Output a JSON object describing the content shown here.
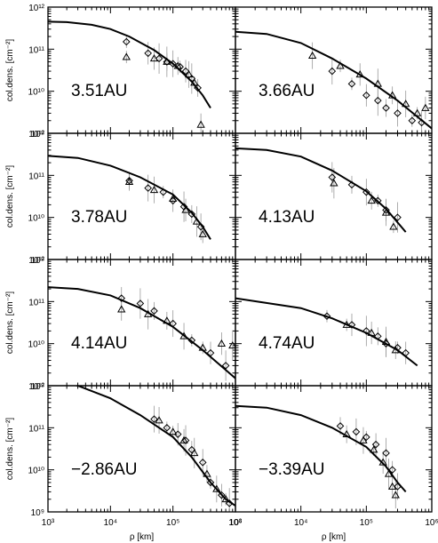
{
  "chart_data": {
    "type": "scatter",
    "xscale": "log",
    "yscale": "log",
    "xlim": [
      1000,
      1000000
    ],
    "ylim": [
      1000000000,
      1000000000000
    ],
    "xlabel": "ρ [km]",
    "ylabel": "col.dens. [cm⁻²]",
    "x_tick_labels": [
      "10³",
      "10⁴",
      "10⁵",
      "10⁶"
    ],
    "y_tick_labels": [
      "10⁹",
      "10¹⁰",
      "10¹¹",
      "10¹²"
    ],
    "markers": {
      "diamond": "open diamond",
      "triangle": "open triangle"
    },
    "grid": false,
    "panels": [
      {
        "label": "3.51AU",
        "model": [
          [
            1000,
            450000000000.0
          ],
          [
            2000,
            440000000000.0
          ],
          [
            5000,
            380000000000.0
          ],
          [
            10000,
            300000000000.0
          ],
          [
            20000,
            200000000000.0
          ],
          [
            50000,
            95000000000.0
          ],
          [
            100000,
            45000000000.0
          ],
          [
            200000,
            17000000000.0
          ],
          [
            300000,
            8000000000.0
          ],
          [
            400000,
            4000000000.0
          ]
        ],
        "diamonds": [
          [
            18000,
            150000000000.0
          ],
          [
            40000,
            80000000000.0
          ],
          [
            60000,
            60000000000.0
          ],
          [
            80000,
            50000000000.0
          ],
          [
            100000,
            45000000000.0
          ],
          [
            130000,
            38000000000.0
          ],
          [
            160000,
            30000000000.0
          ],
          [
            200000,
            20000000000.0
          ],
          [
            250000,
            12000000000.0
          ]
        ],
        "triangles": [
          [
            18000,
            65000000000.0
          ],
          [
            50000,
            60000000000.0
          ],
          [
            80000,
            50000000000.0
          ],
          [
            120000,
            40000000000.0
          ],
          [
            180000,
            25000000000.0
          ],
          [
            220000,
            16000000000.0
          ],
          [
            280000,
            1600000000.0
          ]
        ]
      },
      {
        "label": "3.66AU",
        "model": [
          [
            1000,
            260000000000.0
          ],
          [
            3000,
            230000000000.0
          ],
          [
            10000,
            140000000000.0
          ],
          [
            30000,
            60000000000.0
          ],
          [
            100000,
            20000000000.0
          ],
          [
            300000,
            6000000000.0
          ],
          [
            1000000,
            1300000000.0
          ]
        ],
        "diamonds": [
          [
            30000,
            30000000000.0
          ],
          [
            60000,
            15000000000.0
          ],
          [
            100000,
            8000000000.0
          ],
          [
            150000,
            6000000000.0
          ],
          [
            200000,
            4000000000.0
          ],
          [
            300000,
            3000000000.0
          ],
          [
            500000,
            2000000000.0
          ],
          [
            700000,
            1800000000.0
          ]
        ],
        "triangles": [
          [
            15000,
            70000000000.0
          ],
          [
            40000,
            40000000000.0
          ],
          [
            80000,
            25000000000.0
          ],
          [
            150000,
            15000000000.0
          ],
          [
            250000,
            8000000000.0
          ],
          [
            400000,
            5000000000.0
          ],
          [
            600000,
            3000000000.0
          ],
          [
            800000,
            4000000000.0
          ]
        ]
      },
      {
        "label": "3.78AU",
        "model": [
          [
            1000,
            290000000000.0
          ],
          [
            3000,
            260000000000.0
          ],
          [
            10000,
            170000000000.0
          ],
          [
            30000,
            90000000000.0
          ],
          [
            100000,
            35000000000.0
          ],
          [
            200000,
            13000000000.0
          ],
          [
            300000,
            6000000000.0
          ],
          [
            400000,
            3000000000.0
          ]
        ],
        "diamonds": [
          [
            20000,
            75000000000.0
          ],
          [
            40000,
            50000000000.0
          ],
          [
            70000,
            40000000000.0
          ],
          [
            100000,
            25000000000.0
          ],
          [
            150000,
            18000000000.0
          ],
          [
            200000,
            12000000000.0
          ],
          [
            280000,
            6000000000.0
          ]
        ],
        "triangles": [
          [
            20000,
            70000000000.0
          ],
          [
            50000,
            45000000000.0
          ],
          [
            100000,
            28000000000.0
          ],
          [
            160000,
            15000000000.0
          ],
          [
            240000,
            8000000000.0
          ],
          [
            300000,
            4000000000.0
          ]
        ]
      },
      {
        "label": "4.13AU",
        "model": [
          [
            1000,
            440000000000.0
          ],
          [
            3000,
            400000000000.0
          ],
          [
            10000,
            280000000000.0
          ],
          [
            30000,
            130000000000.0
          ],
          [
            100000,
            42000000000.0
          ],
          [
            200000,
            16000000000.0
          ],
          [
            400000,
            4500000000.0
          ]
        ],
        "diamonds": [
          [
            30000,
            90000000000.0
          ],
          [
            60000,
            60000000000.0
          ],
          [
            100000,
            40000000000.0
          ],
          [
            150000,
            25000000000.0
          ],
          [
            200000,
            15000000000.0
          ],
          [
            300000,
            10000000000.0
          ]
        ],
        "triangles": [
          [
            32000,
            65000000000.0
          ],
          [
            120000,
            25000000000.0
          ],
          [
            200000,
            13000000000.0
          ],
          [
            260000,
            6000000000.0
          ]
        ]
      },
      {
        "label": "4.14AU",
        "model": [
          [
            1000,
            220000000000.0
          ],
          [
            3000,
            200000000000.0
          ],
          [
            10000,
            140000000000.0
          ],
          [
            30000,
            70000000000.0
          ],
          [
            100000,
            25000000000.0
          ],
          [
            300000,
            7000000000.0
          ],
          [
            1000000,
            1500000000.0
          ]
        ],
        "diamonds": [
          [
            15000,
            120000000000.0
          ],
          [
            30000,
            90000000000.0
          ],
          [
            50000,
            60000000000.0
          ],
          [
            100000,
            30000000000.0
          ],
          [
            200000,
            12000000000.0
          ],
          [
            400000,
            6000000000.0
          ],
          [
            700000,
            3000000000.0
          ]
        ],
        "triangles": [
          [
            15000,
            65000000000.0
          ],
          [
            40000,
            50000000000.0
          ],
          [
            80000,
            35000000000.0
          ],
          [
            150000,
            15000000000.0
          ],
          [
            300000,
            8000000000.0
          ],
          [
            600000,
            10000000000.0
          ],
          [
            900000,
            9000000000.0
          ]
        ]
      },
      {
        "label": "4.74AU",
        "model": [
          [
            1000,
            120000000000.0
          ],
          [
            10000,
            70000000000.0
          ],
          [
            30000,
            40000000000.0
          ],
          [
            100000,
            18000000000.0
          ],
          [
            300000,
            7000000000.0
          ],
          [
            600000,
            3000000000.0
          ]
        ],
        "diamonds": [
          [
            25000,
            45000000000.0
          ],
          [
            60000,
            28000000000.0
          ],
          [
            100000,
            20000000000.0
          ],
          [
            150000,
            15000000000.0
          ],
          [
            200000,
            10000000000.0
          ],
          [
            300000,
            8000000000.0
          ],
          [
            400000,
            6000000000.0
          ]
        ],
        "triangles": [
          [
            50000,
            28000000000.0
          ],
          [
            120000,
            18000000000.0
          ],
          [
            200000,
            11000000000.0
          ],
          [
            280000,
            7000000000.0
          ]
        ]
      },
      {
        "label": "−2.86AU",
        "model": [
          [
            1000,
            1400000000000.0
          ],
          [
            3000,
            1000000000000.0
          ],
          [
            10000,
            500000000000.0
          ],
          [
            30000,
            200000000000.0
          ],
          [
            100000,
            60000000000.0
          ],
          [
            200000,
            20000000000.0
          ],
          [
            400000,
            5000000000.0
          ],
          [
            700000,
            2000000000.0
          ],
          [
            1000000,
            1400000000.0
          ]
        ],
        "diamonds": [
          [
            50000,
            160000000000.0
          ],
          [
            80000,
            100000000000.0
          ],
          [
            120000,
            70000000000.0
          ],
          [
            160000,
            50000000000.0
          ],
          [
            200000,
            30000000000.0
          ],
          [
            300000,
            15000000000.0
          ],
          [
            400000,
            5000000000.0
          ],
          [
            600000,
            2500000000.0
          ],
          [
            800000,
            1600000000.0
          ]
        ],
        "triangles": [
          [
            60000,
            150000000000.0
          ],
          [
            100000,
            80000000000.0
          ],
          [
            150000,
            50000000000.0
          ],
          [
            220000,
            25000000000.0
          ],
          [
            350000,
            8000000000.0
          ],
          [
            500000,
            3500000000.0
          ],
          [
            700000,
            2000000000.0
          ]
        ]
      },
      {
        "label": "−3.39AU",
        "model": [
          [
            1000,
            330000000000.0
          ],
          [
            3000,
            300000000000.0
          ],
          [
            10000,
            200000000000.0
          ],
          [
            30000,
            100000000000.0
          ],
          [
            100000,
            35000000000.0
          ],
          [
            200000,
            12000000000.0
          ],
          [
            300000,
            5000000000.0
          ],
          [
            400000,
            3000000000.0
          ]
        ],
        "diamonds": [
          [
            40000,
            110000000000.0
          ],
          [
            70000,
            80000000000.0
          ],
          [
            100000,
            60000000000.0
          ],
          [
            140000,
            40000000000.0
          ],
          [
            200000,
            25000000000.0
          ],
          [
            250000,
            10000000000.0
          ],
          [
            300000,
            4000000000.0
          ]
        ],
        "triangles": [
          [
            50000,
            70000000000.0
          ],
          [
            90000,
            50000000000.0
          ],
          [
            130000,
            30000000000.0
          ],
          [
            180000,
            15000000000.0
          ],
          [
            220000,
            8000000000.0
          ],
          [
            250000,
            4000000000.0
          ],
          [
            280000,
            2500000000.0
          ]
        ]
      }
    ]
  }
}
